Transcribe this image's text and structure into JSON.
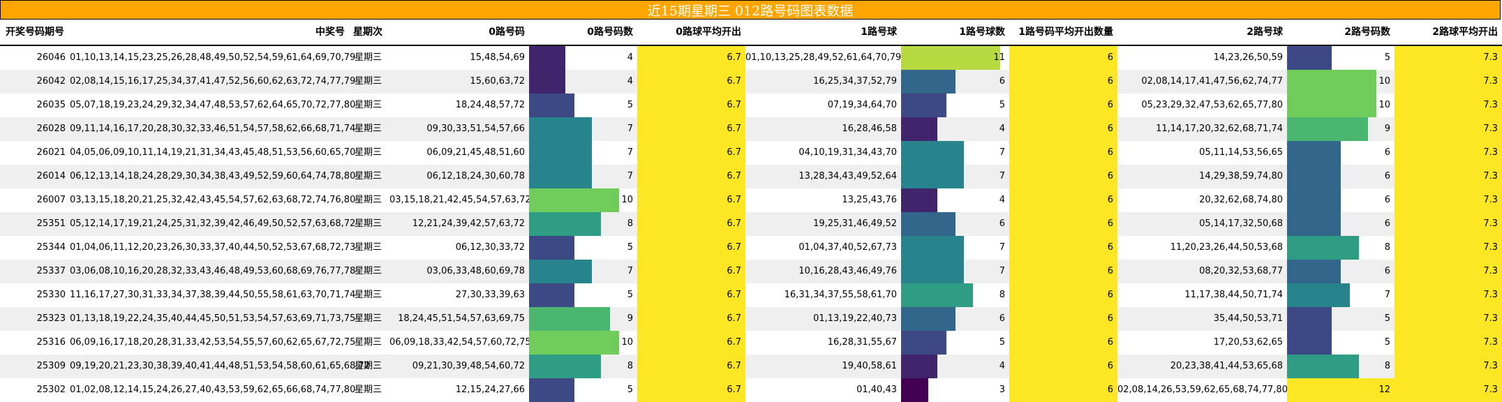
{
  "title": "近15期星期三 012路号码图表数据",
  "chart_data": {
    "type": "table",
    "title": "近15期星期三 012路号码图表数据",
    "columns": [
      "开奖号码期号",
      "中奖号",
      "星期次",
      "0路号码",
      "0路号码数",
      "0路球平均开出",
      "1路号球",
      "1路号球数",
      "1路号码平均开出数量",
      "2路号球",
      "2路号码数",
      "2路球平均开出"
    ],
    "rows": [
      {
        "issue": "26046",
        "numbers": "01,10,13,14,15,23,25,26,28,48,49,50,52,54,59,61,64,69,70,79",
        "weekday": "星期三",
        "r0": "15,48,54,69",
        "c0": 4,
        "a0": "6.7",
        "r1": "01,10,13,25,28,49,52,61,64,70,79",
        "c1": 11,
        "a1": "6",
        "r2": "14,23,26,50,59",
        "c2": 5,
        "a2": "7.3"
      },
      {
        "issue": "26042",
        "numbers": "02,08,14,15,16,17,25,34,37,41,47,52,56,60,62,63,72,74,77,79",
        "weekday": "星期三",
        "r0": "15,60,63,72",
        "c0": 4,
        "a0": "6.7",
        "r1": "16,25,34,37,52,79",
        "c1": 6,
        "a1": "6",
        "r2": "02,08,14,17,41,47,56,62,74,77",
        "c2": 10,
        "a2": "7.3"
      },
      {
        "issue": "26035",
        "numbers": "05,07,18,19,23,24,29,32,34,47,48,53,57,62,64,65,70,72,77,80",
        "weekday": "星期三",
        "r0": "18,24,48,57,72",
        "c0": 5,
        "a0": "6.7",
        "r1": "07,19,34,64,70",
        "c1": 5,
        "a1": "6",
        "r2": "05,23,29,32,47,53,62,65,77,80",
        "c2": 10,
        "a2": "7.3"
      },
      {
        "issue": "26028",
        "numbers": "09,11,14,16,17,20,28,30,32,33,46,51,54,57,58,62,66,68,71,74",
        "weekday": "星期三",
        "r0": "09,30,33,51,54,57,66",
        "c0": 7,
        "a0": "6.7",
        "r1": "16,28,46,58",
        "c1": 4,
        "a1": "6",
        "r2": "11,14,17,20,32,62,68,71,74",
        "c2": 9,
        "a2": "7.3"
      },
      {
        "issue": "26021",
        "numbers": "04,05,06,09,10,11,14,19,21,31,34,43,45,48,51,53,56,60,65,70",
        "weekday": "星期三",
        "r0": "06,09,21,45,48,51,60",
        "c0": 7,
        "a0": "6.7",
        "r1": "04,10,19,31,34,43,70",
        "c1": 7,
        "a1": "6",
        "r2": "05,11,14,53,56,65",
        "c2": 6,
        "a2": "7.3"
      },
      {
        "issue": "26014",
        "numbers": "06,12,13,14,18,24,28,29,30,34,38,43,49,52,59,60,64,74,78,80",
        "weekday": "星期三",
        "r0": "06,12,18,24,30,60,78",
        "c0": 7,
        "a0": "6.7",
        "r1": "13,28,34,43,49,52,64",
        "c1": 7,
        "a1": "6",
        "r2": "14,29,38,59,74,80",
        "c2": 6,
        "a2": "7.3"
      },
      {
        "issue": "26007",
        "numbers": "03,13,15,18,20,21,25,32,42,43,45,54,57,62,63,68,72,74,76,80",
        "weekday": "星期三",
        "r0": "03,15,18,21,42,45,54,57,63,72",
        "c0": 10,
        "a0": "6.7",
        "r1": "13,25,43,76",
        "c1": 4,
        "a1": "6",
        "r2": "20,32,62,68,74,80",
        "c2": 6,
        "a2": "7.3"
      },
      {
        "issue": "25351",
        "numbers": "05,12,14,17,19,21,24,25,31,32,39,42,46,49,50,52,57,63,68,72",
        "weekday": "星期三",
        "r0": "12,21,24,39,42,57,63,72",
        "c0": 8,
        "a0": "6.7",
        "r1": "19,25,31,46,49,52",
        "c1": 6,
        "a1": "6",
        "r2": "05,14,17,32,50,68",
        "c2": 6,
        "a2": "7.3"
      },
      {
        "issue": "25344",
        "numbers": "01,04,06,11,12,20,23,26,30,33,37,40,44,50,52,53,67,68,72,73",
        "weekday": "星期三",
        "r0": "06,12,30,33,72",
        "c0": 5,
        "a0": "6.7",
        "r1": "01,04,37,40,52,67,73",
        "c1": 7,
        "a1": "6",
        "r2": "11,20,23,26,44,50,53,68",
        "c2": 8,
        "a2": "7.3"
      },
      {
        "issue": "25337",
        "numbers": "03,06,08,10,16,20,28,32,33,43,46,48,49,53,60,68,69,76,77,78",
        "weekday": "星期三",
        "r0": "03,06,33,48,60,69,78",
        "c0": 7,
        "a0": "6.7",
        "r1": "10,16,28,43,46,49,76",
        "c1": 7,
        "a1": "6",
        "r2": "08,20,32,53,68,77",
        "c2": 6,
        "a2": "7.3"
      },
      {
        "issue": "25330",
        "numbers": "11,16,17,27,30,31,33,34,37,38,39,44,50,55,58,61,63,70,71,74",
        "weekday": "星期三",
        "r0": "27,30,33,39,63",
        "c0": 5,
        "a0": "6.7",
        "r1": "16,31,34,37,55,58,61,70",
        "c1": 8,
        "a1": "6",
        "r2": "11,17,38,44,50,71,74",
        "c2": 7,
        "a2": "7.3"
      },
      {
        "issue": "25323",
        "numbers": "01,13,18,19,22,24,35,40,44,45,50,51,53,54,57,63,69,71,73,75",
        "weekday": "星期三",
        "r0": "18,24,45,51,54,57,63,69,75",
        "c0": 9,
        "a0": "6.7",
        "r1": "01,13,19,22,40,73",
        "c1": 6,
        "a1": "6",
        "r2": "35,44,50,53,71",
        "c2": 5,
        "a2": "7.3"
      },
      {
        "issue": "25316",
        "numbers": "06,09,16,17,18,20,28,31,33,42,53,54,55,57,60,62,65,67,72,75",
        "weekday": "星期三",
        "r0": "06,09,18,33,42,54,57,60,72,75",
        "c0": 10,
        "a0": "6.7",
        "r1": "16,28,31,55,67",
        "c1": 5,
        "a1": "6",
        "r2": "17,20,53,62,65",
        "c2": 5,
        "a2": "7.3"
      },
      {
        "issue": "25309",
        "numbers": "09,19,20,21,23,30,38,39,40,41,44,48,51,53,54,58,60,61,65,68,72",
        "weekday": "星期三",
        "r0": "09,21,30,39,48,54,60,72",
        "c0": 8,
        "a0": "6.7",
        "r1": "19,40,58,61",
        "c1": 4,
        "a1": "6",
        "r2": "20,23,38,41,44,53,65,68",
        "c2": 8,
        "a2": "7.3"
      },
      {
        "issue": "25302",
        "numbers": "01,02,08,12,14,15,24,26,27,40,43,53,59,62,65,66,68,74,77,80",
        "weekday": "星期三",
        "r0": "12,15,24,27,66",
        "c0": 5,
        "a0": "6.7",
        "r1": "01,40,43",
        "c1": 3,
        "a1": "6",
        "r2": "02,08,14,26,53,59,62,65,68,74,77,80",
        "c2": 12,
        "a2": "7.3"
      }
    ]
  }
}
